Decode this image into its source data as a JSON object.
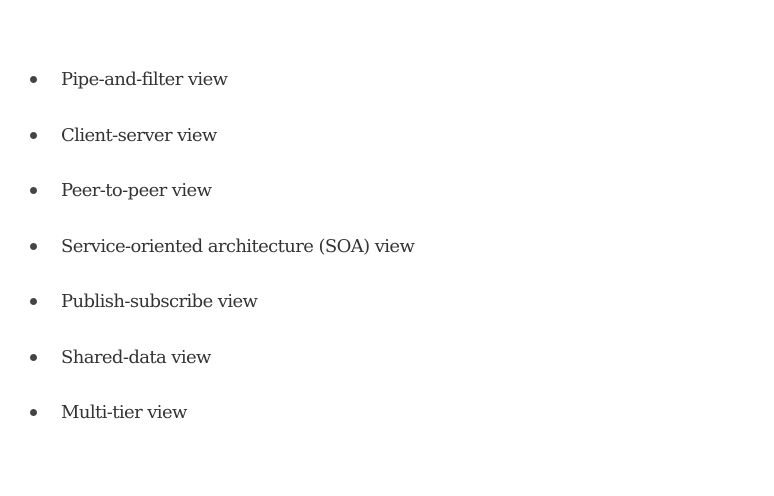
{
  "list": {
    "items": [
      {
        "label": "Pipe-and-filter view"
      },
      {
        "label": "Client-server view"
      },
      {
        "label": "Peer-to-peer view"
      },
      {
        "label": "Service-oriented architecture (SOA) view"
      },
      {
        "label": "Publish-subscribe view"
      },
      {
        "label": "Shared-data view"
      },
      {
        "label": "Multi-tier view"
      }
    ]
  },
  "colors": {
    "text": "#333333",
    "bullet": "#444444",
    "background": "#ffffff"
  }
}
